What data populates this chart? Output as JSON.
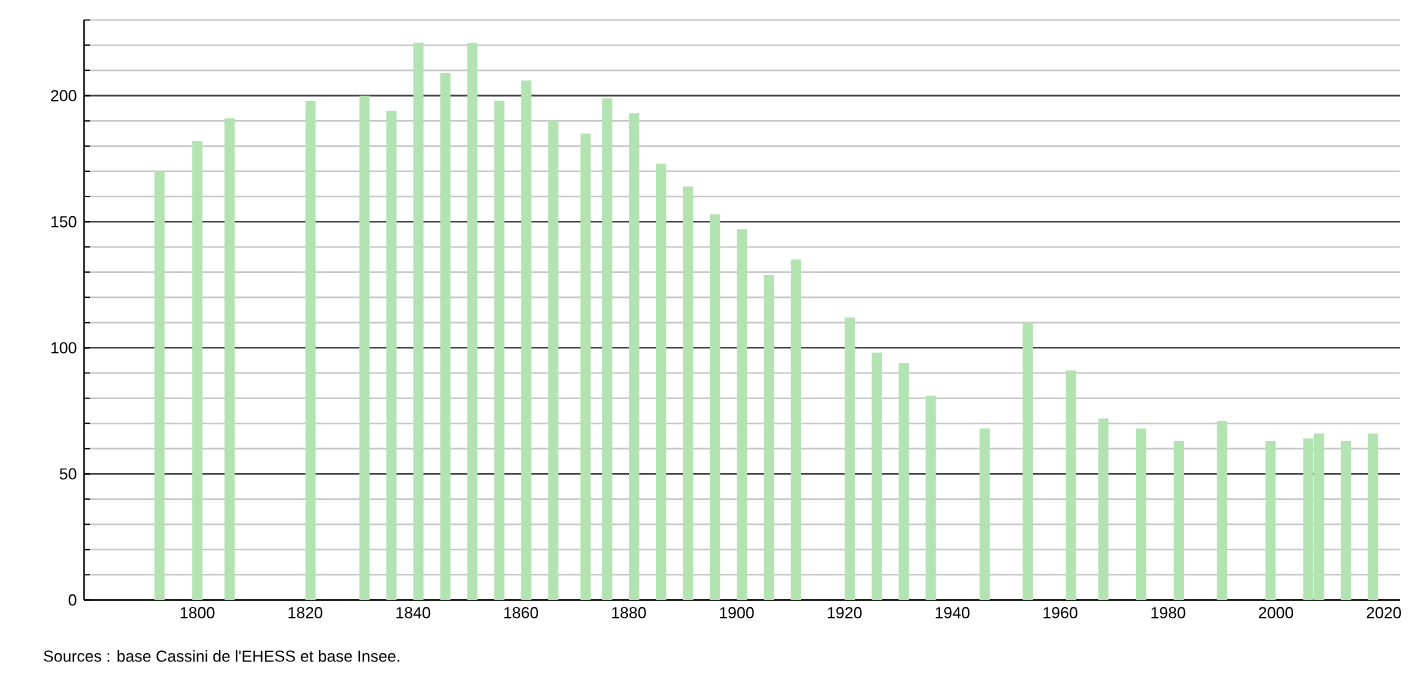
{
  "chart_data": {
    "type": "bar",
    "color": "#b3e3b1",
    "x": [
      1793,
      1800,
      1806,
      1821,
      1831,
      1836,
      1841,
      1846,
      1851,
      1856,
      1861,
      1866,
      1872,
      1876,
      1881,
      1886,
      1891,
      1896,
      1901,
      1906,
      1911,
      1921,
      1926,
      1931,
      1936,
      1946,
      1954,
      1962,
      1968,
      1975,
      1982,
      1990,
      1999,
      2006,
      2008,
      2013,
      2018
    ],
    "values": [
      170,
      182,
      191,
      198,
      200,
      194,
      221,
      209,
      221,
      198,
      206,
      190,
      185,
      199,
      193,
      173,
      164,
      153,
      147,
      129,
      135,
      112,
      98,
      94,
      81,
      68,
      110,
      91,
      72,
      68,
      63,
      71,
      63,
      64,
      66,
      63,
      66
    ],
    "xlim": [
      1779,
      2023
    ],
    "xticks": [
      1800,
      1820,
      1840,
      1860,
      1880,
      1900,
      1920,
      1940,
      1960,
      1980,
      2000,
      2020
    ],
    "ylim": [
      0,
      230
    ],
    "yticks": [
      0,
      {
        "value": 10,
        "label": null
      },
      {
        "value": 20,
        "label": null
      },
      {
        "value": 30,
        "label": null
      },
      {
        "value": 40,
        "label": null
      },
      50,
      {
        "value": 60,
        "label": null
      },
      {
        "value": 70,
        "label": null
      },
      {
        "value": 80,
        "label": null
      },
      {
        "value": 90,
        "label": null
      },
      100,
      {
        "value": 110,
        "label": null
      },
      {
        "value": 120,
        "label": null
      },
      {
        "value": 130,
        "label": null
      },
      {
        "value": 140,
        "label": null
      },
      150,
      {
        "value": 160,
        "label": null
      },
      {
        "value": 170,
        "label": null
      },
      {
        "value": 180,
        "label": null
      },
      {
        "value": 190,
        "label": null
      },
      200,
      {
        "value": 210,
        "label": null
      },
      {
        "value": 220,
        "label": null
      },
      {
        "value": 230,
        "label": null
      }
    ],
    "grid": "y",
    "annotations": [
      "Sources : base Cassini de l'EHESS et base Insee."
    ]
  }
}
